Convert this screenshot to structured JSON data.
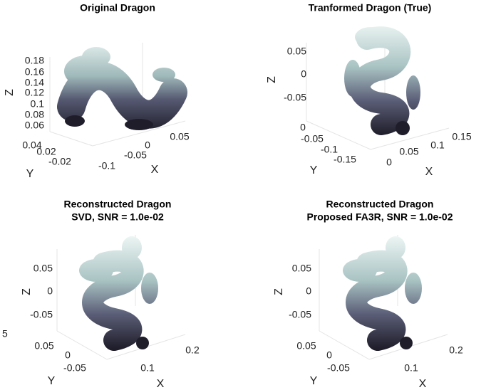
{
  "panels": [
    {
      "title": [
        "Original Dragon"
      ],
      "z_label": "Z",
      "y_label": "Y",
      "x_label": "X",
      "zticks": [
        0.18,
        0.16,
        0.14,
        0.12,
        0.1,
        0.08,
        0.06
      ],
      "yticks": [
        0.04,
        0.02,
        -0.02
      ],
      "xticks": [
        -0.1,
        -0.05,
        0,
        0.05
      ]
    },
    {
      "title": [
        "Tranformed Dragon (True)"
      ],
      "z_label": "Z",
      "y_label": "Y",
      "x_label": "X",
      "zticks": [
        0.05,
        0,
        -0.05
      ],
      "yticks": [
        0,
        -0.05,
        -0.1,
        -0.15
      ],
      "xticks": [
        0,
        0.05,
        0.1,
        0.15
      ]
    },
    {
      "title": [
        "Reconstructed Dragon",
        "SVD, SNR = 1.0e-02"
      ],
      "z_label": "Z",
      "y_label": "Y",
      "x_label": "X",
      "zticks": [
        0.05,
        0,
        -0.05
      ],
      "yticks": [
        0.05,
        0,
        -0.05
      ],
      "xticks": [
        0.1,
        0.2
      ]
    },
    {
      "title": [
        "Reconstructed Dragon",
        "Proposed FA3R, SNR = 1.0e-02"
      ],
      "z_label": "Z",
      "y_label": "Y",
      "x_label": "X",
      "zticks": [
        0.05,
        0,
        -0.05
      ],
      "yticks": [
        0.05,
        0,
        -0.05
      ],
      "xticks": [
        0.1,
        0.2
      ]
    }
  ],
  "edge_label": "5"
}
